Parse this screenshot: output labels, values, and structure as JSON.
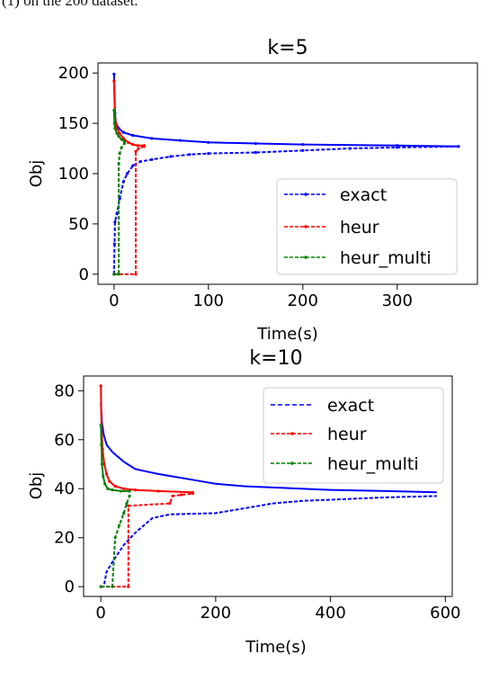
{
  "caption": "(1) on the 200 dataset.",
  "chart_data": [
    {
      "type": "line",
      "title": "k=5",
      "xlabel": "Time(s)",
      "ylabel": "Obj",
      "xlim": [
        -17,
        385
      ],
      "ylim": [
        -10,
        210
      ],
      "xticks": [
        0,
        100,
        200,
        300
      ],
      "yticks": [
        0,
        50,
        100,
        150,
        200
      ],
      "legend": "lower-right",
      "series": [
        {
          "name": "exact",
          "color": "#0000ff",
          "style": "dashed",
          "marker": "dot",
          "upper": [
            [
              0,
              199
            ],
            [
              1,
              160
            ],
            [
              2,
              150
            ],
            [
              5,
              145
            ],
            [
              10,
              141
            ],
            [
              20,
              138
            ],
            [
              40,
              135
            ],
            [
              70,
              133
            ],
            [
              100,
              131
            ],
            [
              150,
              130
            ],
            [
              200,
              129
            ],
            [
              300,
              128
            ],
            [
              365,
              127
            ]
          ],
          "lower": [
            [
              0,
              0
            ],
            [
              0.5,
              30
            ],
            [
              1,
              52
            ],
            [
              3,
              60
            ],
            [
              6,
              75
            ],
            [
              10,
              92
            ],
            [
              14,
              100
            ],
            [
              20,
              108
            ],
            [
              28,
              112
            ],
            [
              40,
              114
            ],
            [
              60,
              117
            ],
            [
              80,
              119
            ],
            [
              100,
              120
            ],
            [
              150,
              121
            ],
            [
              200,
              123
            ],
            [
              250,
              125
            ],
            [
              300,
              126
            ],
            [
              365,
              127
            ]
          ]
        },
        {
          "name": "heur",
          "color": "#ff0000",
          "style": "dashed",
          "marker": "dot",
          "upper": [
            [
              0,
              192
            ],
            [
              1,
              155
            ],
            [
              3,
              145
            ],
            [
              6,
              140
            ],
            [
              10,
              135
            ],
            [
              15,
              131
            ],
            [
              20,
              129
            ],
            [
              25,
              128
            ],
            [
              32,
              128
            ]
          ],
          "lower": [
            [
              0,
              0
            ],
            [
              23,
              0
            ],
            [
              23,
              122
            ],
            [
              26,
              125
            ],
            [
              32,
              127
            ]
          ]
        },
        {
          "name": "heur_multi",
          "color": "#008000",
          "style": "dashed",
          "marker": "dot",
          "upper": [
            [
              0,
              163
            ],
            [
              0.5,
              150
            ],
            [
              1,
              145
            ],
            [
              3,
              140
            ],
            [
              5,
              137
            ],
            [
              8,
              134
            ],
            [
              11,
              132
            ]
          ],
          "lower": [
            [
              0,
              0
            ],
            [
              5,
              0
            ],
            [
              5,
              110
            ],
            [
              6,
              120
            ],
            [
              8,
              126
            ],
            [
              11,
              130
            ]
          ]
        }
      ]
    },
    {
      "type": "line",
      "title": "k=10",
      "xlabel": "Time(s)",
      "ylabel": "Obj",
      "xlim": [
        -30,
        612
      ],
      "ylim": [
        -4,
        86
      ],
      "xticks": [
        0,
        200,
        400,
        600
      ],
      "yticks": [
        0,
        20,
        40,
        60,
        80
      ],
      "legend": "upper-right",
      "series": [
        {
          "name": "exact",
          "color": "#0000ff",
          "style": "dashed",
          "marker": "none",
          "upper": [
            [
              0,
              75
            ],
            [
              2,
              67
            ],
            [
              5,
              62
            ],
            [
              10,
              58
            ],
            [
              20,
              55
            ],
            [
              40,
              51
            ],
            [
              60,
              48
            ],
            [
              80,
              47
            ],
            [
              100,
              46
            ],
            [
              150,
              44
            ],
            [
              200,
              42
            ],
            [
              250,
              41
            ],
            [
              300,
              40.5
            ],
            [
              400,
              39.5
            ],
            [
              500,
              39
            ],
            [
              585,
              38.5
            ]
          ],
          "lower": [
            [
              0,
              0
            ],
            [
              5,
              0
            ],
            [
              10,
              6
            ],
            [
              20,
              10
            ],
            [
              40,
              17
            ],
            [
              60,
              22
            ],
            [
              80,
              26
            ],
            [
              90,
              28
            ],
            [
              120,
              29.5
            ],
            [
              200,
              30
            ],
            [
              250,
              32
            ],
            [
              300,
              34
            ],
            [
              350,
              35
            ],
            [
              400,
              35.5
            ],
            [
              450,
              36
            ],
            [
              500,
              36.5
            ],
            [
              585,
              37
            ]
          ]
        },
        {
          "name": "heur",
          "color": "#ff0000",
          "style": "dashed",
          "marker": "dot",
          "upper": [
            [
              0,
              82
            ],
            [
              1,
              66
            ],
            [
              3,
              56
            ],
            [
              6,
              50
            ],
            [
              10,
              46
            ],
            [
              15,
              43
            ],
            [
              25,
              41
            ],
            [
              40,
              40
            ],
            [
              60,
              39.5
            ],
            [
              100,
              39
            ],
            [
              160,
              38.5
            ]
          ],
          "lower": [
            [
              0,
              0
            ],
            [
              48,
              0
            ],
            [
              48,
              33
            ],
            [
              120,
              34
            ],
            [
              125,
              37
            ],
            [
              140,
              37.5
            ],
            [
              160,
              38
            ]
          ]
        },
        {
          "name": "heur_multi",
          "color": "#008000",
          "style": "dashed",
          "marker": "dot",
          "upper": [
            [
              0,
              66
            ],
            [
              1,
              58
            ],
            [
              2,
              50
            ],
            [
              4,
              45
            ],
            [
              7,
              42
            ],
            [
              12,
              40
            ],
            [
              20,
              39.5
            ],
            [
              35,
              39
            ],
            [
              50,
              39
            ]
          ],
          "lower": [
            [
              0,
              0
            ],
            [
              20,
              0
            ],
            [
              25,
              20
            ],
            [
              32,
              25
            ],
            [
              40,
              30
            ],
            [
              45,
              34
            ],
            [
              50,
              37
            ]
          ]
        }
      ]
    }
  ]
}
